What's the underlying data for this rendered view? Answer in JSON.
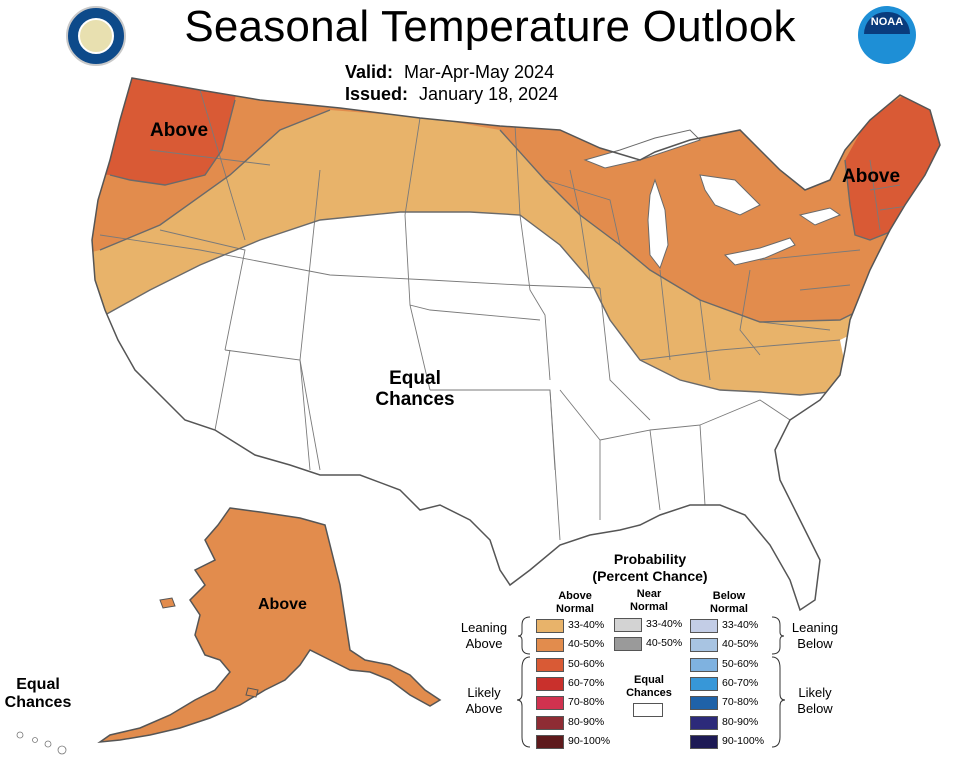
{
  "header": {
    "title": "Seasonal Temperature Outlook",
    "valid_label": "Valid:",
    "valid_value": "Mar-Apr-May 2024",
    "issued_label": "Issued:",
    "issued_value": "January 18, 2024"
  },
  "map_labels": {
    "pacific_nw": "Above",
    "new_england": "Above",
    "center": [
      "Equal",
      "Chances"
    ],
    "alaska": "Above",
    "hawaii": [
      "Equal",
      "Chances"
    ]
  },
  "legend": {
    "title": [
      "Probability",
      "(Percent Chance)"
    ],
    "headers": {
      "above": [
        "Above",
        "Normal"
      ],
      "near": [
        "Near",
        "Normal"
      ],
      "below": [
        "Below",
        "Normal"
      ]
    },
    "above": [
      {
        "label": "33-40%",
        "color": "#e8b36a"
      },
      {
        "label": "40-50%",
        "color": "#e28c4d"
      },
      {
        "label": "50-60%",
        "color": "#d95a35"
      },
      {
        "label": "60-70%",
        "color": "#c9302c"
      },
      {
        "label": "70-80%",
        "color": "#d0324f"
      },
      {
        "label": "80-90%",
        "color": "#8e2c34"
      },
      {
        "label": "90-100%",
        "color": "#5e1a1c"
      }
    ],
    "near": [
      {
        "label": "33-40%",
        "color": "#d3d3d3"
      },
      {
        "label": "40-50%",
        "color": "#9a9a9a"
      }
    ],
    "below": [
      {
        "label": "33-40%",
        "color": "#c3cde6"
      },
      {
        "label": "40-50%",
        "color": "#a8c4e2"
      },
      {
        "label": "50-60%",
        "color": "#7fb2e0"
      },
      {
        "label": "60-70%",
        "color": "#3797d8"
      },
      {
        "label": "70-80%",
        "color": "#1f62a8"
      },
      {
        "label": "80-90%",
        "color": "#2c2a7a"
      },
      {
        "label": "90-100%",
        "color": "#1d1a55"
      }
    ],
    "equal_chances": [
      "Equal",
      "Chances"
    ],
    "leaning_above": [
      "Leaning",
      "Above"
    ],
    "likely_above": [
      "Likely",
      "Above"
    ],
    "leaning_below": [
      "Leaning",
      "Below"
    ],
    "likely_below": [
      "Likely",
      "Below"
    ]
  },
  "logos": {
    "left": "commerce-seal-icon",
    "right": "noaa-logo-icon",
    "noaa_text": "NOAA"
  },
  "colors": {
    "above_33_40": "#e8b36a",
    "above_40_50": "#e28c4d",
    "above_50_60": "#d95a35",
    "equal_chances": "#ffffff",
    "border": "#6a6a6a"
  }
}
